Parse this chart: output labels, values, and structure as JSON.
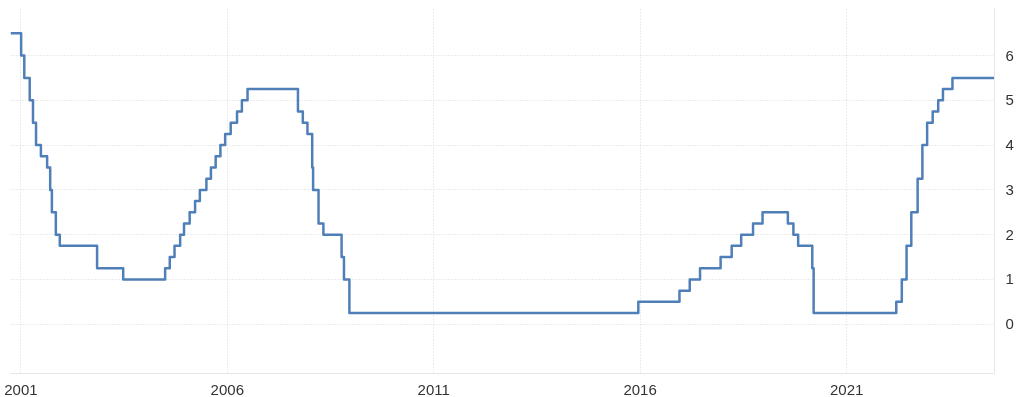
{
  "chart_data": {
    "type": "step",
    "x": [
      "2000-10",
      "2001-01-03",
      "2001-01-31",
      "2001-03-20",
      "2001-04-18",
      "2001-05-15",
      "2001-06-27",
      "2001-08-21",
      "2001-09-17",
      "2001-10-02",
      "2001-11-06",
      "2001-12-11",
      "2002-11-06",
      "2003-06-25",
      "2004-06-30",
      "2004-08-10",
      "2004-09-21",
      "2004-11-10",
      "2004-12-14",
      "2005-02-02",
      "2005-03-22",
      "2005-05-03",
      "2005-06-30",
      "2005-08-09",
      "2005-09-20",
      "2005-11-01",
      "2005-12-13",
      "2006-01-31",
      "2006-03-28",
      "2006-05-10",
      "2006-06-29",
      "2007-09-18",
      "2007-10-31",
      "2007-12-11",
      "2008-01-22",
      "2008-01-30",
      "2008-03-18",
      "2008-04-30",
      "2008-10-08",
      "2008-10-29",
      "2008-12-16",
      "2015-12-16",
      "2016-12-14",
      "2017-03-15",
      "2017-06-14",
      "2017-12-13",
      "2018-03-21",
      "2018-06-13",
      "2018-09-26",
      "2018-12-19",
      "2019-07-31",
      "2019-09-18",
      "2019-10-30",
      "2020-03-03",
      "2020-03-15",
      "2022-03-16",
      "2022-05-04",
      "2022-06-15",
      "2022-07-27",
      "2022-09-21",
      "2022-11-02",
      "2022-12-14",
      "2023-02-01",
      "2023-03-22",
      "2023-05-03",
      "2023-07-26",
      "2024-08"
    ],
    "series": [
      {
        "color": "#4f7fb8",
        "values": [
          6.5,
          6.0,
          5.5,
          5.0,
          4.5,
          4.0,
          3.75,
          3.5,
          3.0,
          2.5,
          2.0,
          1.75,
          1.25,
          1.0,
          1.25,
          1.5,
          1.75,
          2.0,
          2.25,
          2.5,
          2.75,
          3.0,
          3.25,
          3.5,
          3.75,
          4.0,
          4.25,
          4.5,
          4.75,
          5.0,
          5.25,
          4.75,
          4.5,
          4.25,
          3.5,
          3.0,
          2.25,
          2.0,
          1.5,
          1.0,
          0.25,
          0.5,
          0.75,
          1.0,
          1.25,
          1.5,
          1.75,
          2.0,
          2.25,
          2.5,
          2.25,
          2.0,
          1.75,
          1.25,
          0.25,
          0.5,
          1.0,
          1.75,
          2.5,
          3.25,
          4.0,
          4.5,
          4.75,
          5.0,
          5.25,
          5.5,
          5.5
        ]
      }
    ],
    "xlim": [
      "2000-10",
      "2024-08"
    ],
    "xticks": [
      {
        "value": "2001",
        "label": "2001"
      },
      {
        "value": "2006",
        "label": "2006"
      },
      {
        "value": "2011",
        "label": "2011"
      },
      {
        "value": "2016",
        "label": "2016"
      },
      {
        "value": "2021",
        "label": "2021"
      }
    ],
    "ylim": [
      -1.1,
      7.05
    ],
    "yticks": [
      0,
      1,
      2,
      3,
      4,
      5,
      6
    ],
    "grid": true,
    "line_style": "solid"
  }
}
